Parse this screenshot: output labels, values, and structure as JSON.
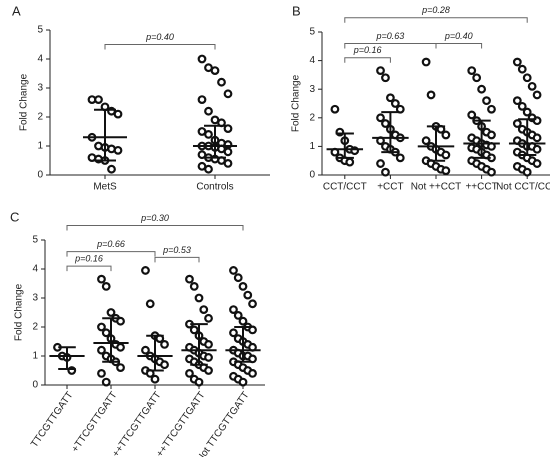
{
  "chart_data": [
    {
      "type": "strip",
      "panel": "A",
      "ylabel": "Fold Change",
      "ylim": [
        0,
        5
      ],
      "yticks": [
        0,
        1,
        2,
        3,
        4,
        5
      ],
      "groups": [
        {
          "name": "MetS",
          "values": [
            2.6,
            2.6,
            2.35,
            2.2,
            2.1,
            1.3,
            1.0,
            0.95,
            0.9,
            0.85,
            0.6,
            0.55,
            0.5,
            0.2
          ],
          "median": 1.3,
          "lower": 0.5,
          "upper": 2.25
        },
        {
          "name": "Controls",
          "values": [
            4.0,
            3.7,
            3.6,
            3.2,
            2.8,
            2.6,
            2.2,
            1.9,
            1.8,
            1.6,
            1.5,
            1.4,
            1.2,
            1.1,
            1.05,
            1.0,
            1.0,
            0.95,
            0.9,
            0.8,
            0.7,
            0.6,
            0.55,
            0.5,
            0.4,
            0.3,
            0.2
          ],
          "median": 1.0,
          "lower": 0.6,
          "upper": 1.7
        }
      ],
      "brackets": [
        {
          "label": "p=0.40",
          "from": "MetS",
          "to": "Controls",
          "y": 4.5
        }
      ]
    },
    {
      "type": "strip",
      "panel": "B",
      "ylabel": "Fold Change",
      "ylim": [
        0,
        5
      ],
      "yticks": [
        0,
        1,
        2,
        3,
        4,
        5
      ],
      "groups": [
        {
          "name": "CCT/CCT",
          "values": [
            2.3,
            1.5,
            1.2,
            0.9,
            0.85,
            0.8,
            0.6,
            0.5,
            0.45
          ],
          "median": 0.9,
          "lower": 0.6,
          "upper": 1.45
        },
        {
          "name": "+CCT",
          "values": [
            3.65,
            3.4,
            2.7,
            2.5,
            2.3,
            2.0,
            1.8,
            1.6,
            1.4,
            1.3,
            1.2,
            1.0,
            0.9,
            0.8,
            0.6,
            0.4,
            0.1
          ],
          "median": 1.3,
          "lower": 0.8,
          "upper": 2.2
        },
        {
          "name": "Not ++CCT",
          "values": [
            3.95,
            2.8,
            1.7,
            1.6,
            1.4,
            1.2,
            1.0,
            0.9,
            0.8,
            0.7,
            0.5,
            0.4,
            0.3,
            0.2,
            0.15
          ],
          "median": 1.0,
          "lower": 0.5,
          "upper": 1.7
        },
        {
          "name": "++CCT",
          "values": [
            3.65,
            3.4,
            3.0,
            2.6,
            2.3,
            2.1,
            1.9,
            1.7,
            1.5,
            1.4,
            1.3,
            1.2,
            1.1,
            1.05,
            1.0,
            0.95,
            0.9,
            0.8,
            0.7,
            0.6,
            0.5,
            0.4,
            0.3,
            0.2,
            0.1
          ],
          "median": 1.1,
          "lower": 0.6,
          "upper": 1.9
        },
        {
          "name": "Not CCT/CCT",
          "values": [
            3.95,
            3.7,
            3.4,
            3.1,
            2.8,
            2.6,
            2.4,
            2.2,
            2.0,
            1.9,
            1.8,
            1.6,
            1.5,
            1.4,
            1.3,
            1.2,
            1.1,
            1.0,
            1.0,
            0.9,
            0.8,
            0.7,
            0.6,
            0.5,
            0.4,
            0.3,
            0.2,
            0.1
          ],
          "median": 1.1,
          "lower": 0.7,
          "upper": 1.95
        }
      ],
      "brackets": [
        {
          "label": "p=0.16",
          "from": "CCT/CCT",
          "to": "+CCT",
          "y": 4.1
        },
        {
          "label": "p=0.63",
          "from": "CCT/CCT",
          "to": "Not ++CCT",
          "y": 4.6
        },
        {
          "label": "p=0.40",
          "from": "Not ++CCT",
          "to": "++CCT",
          "y": 4.6
        },
        {
          "label": "p=0.28",
          "from": "CCT/CCT",
          "to": "Not CCT/CCT",
          "y": 5.5
        }
      ]
    },
    {
      "type": "strip",
      "panel": "C",
      "ylabel": "Fold Change",
      "ylim": [
        0,
        5
      ],
      "yticks": [
        0,
        1,
        2,
        3,
        4,
        5
      ],
      "groups": [
        {
          "name": "TTCGTTGATT",
          "values": [
            1.3,
            1.0,
            0.95,
            0.5
          ],
          "median": 1.0,
          "lower": 0.55,
          "upper": 1.3
        },
        {
          "name": "+TTCGTTGATT",
          "values": [
            3.65,
            3.4,
            2.5,
            2.3,
            2.2,
            2.0,
            1.8,
            1.6,
            1.4,
            1.3,
            1.2,
            1.0,
            0.9,
            0.8,
            0.6,
            0.4,
            0.1
          ],
          "median": 1.45,
          "lower": 0.8,
          "upper": 2.3
        },
        {
          "name": "Not ++TTCGTTGATT",
          "values": [
            3.95,
            2.8,
            1.7,
            1.6,
            1.4,
            1.2,
            1.0,
            0.9,
            0.8,
            0.7,
            0.5,
            0.4,
            0.2
          ],
          "median": 1.0,
          "lower": 0.5,
          "upper": 1.7
        },
        {
          "name": "++TTCGTTGATT",
          "values": [
            3.65,
            3.4,
            3.0,
            2.6,
            2.3,
            2.1,
            1.9,
            1.7,
            1.5,
            1.4,
            1.3,
            1.2,
            1.1,
            1.0,
            0.95,
            0.9,
            0.8,
            0.7,
            0.6,
            0.5,
            0.4,
            0.2,
            0.1
          ],
          "median": 1.2,
          "lower": 0.7,
          "upper": 2.1
        },
        {
          "name": "Not TTCGTTGATT",
          "values": [
            3.95,
            3.7,
            3.4,
            3.1,
            2.8,
            2.6,
            2.4,
            2.2,
            2.0,
            1.9,
            1.8,
            1.6,
            1.5,
            1.4,
            1.3,
            1.2,
            1.1,
            1.0,
            1.0,
            0.9,
            0.8,
            0.7,
            0.6,
            0.5,
            0.4,
            0.3,
            0.2,
            0.1
          ],
          "median": 1.2,
          "lower": 0.8,
          "upper": 2.0
        }
      ],
      "brackets": [
        {
          "label": "p=0.16",
          "from": "TTCGTTGATT",
          "to": "+TTCGTTGATT",
          "y": 4.1
        },
        {
          "label": "p=0.66",
          "from": "TTCGTTGATT",
          "to": "Not ++TTCGTTGATT",
          "y": 4.6
        },
        {
          "label": "p=0.53",
          "from": "Not ++TTCGTTGATT",
          "to": "++TTCGTTGATT",
          "y": 4.4
        },
        {
          "label": "p=0.30",
          "from": "TTCGTTGATT",
          "to": "Not TTCGTTGATT",
          "y": 5.5
        }
      ]
    }
  ]
}
